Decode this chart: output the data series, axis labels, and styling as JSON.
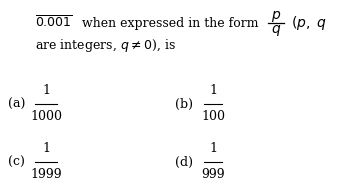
{
  "bg_color": "#ffffff",
  "text_color": "#000000",
  "figsize": [
    3.56,
    1.93
  ],
  "dpi": 100,
  "opt_a_label": "(a)",
  "opt_a_num": "1",
  "opt_a_den": "1000",
  "opt_b_label": "(b)",
  "opt_b_num": "1",
  "opt_b_den": "100",
  "opt_c_label": "(c)",
  "opt_c_num": "1",
  "opt_c_den": "1999",
  "opt_d_label": "(d)",
  "opt_d_num": "1",
  "opt_d_den": "999",
  "fs_main": 9.0,
  "fs_option": 9.0,
  "line1a": "$\\overline{0.001}$  when expressed in the form ",
  "line1b_p": "$p$",
  "line1b_q": "$q$",
  "line1c": "$(p,\\ q$",
  "line2": "are integers, $q \\neq 0$), is"
}
